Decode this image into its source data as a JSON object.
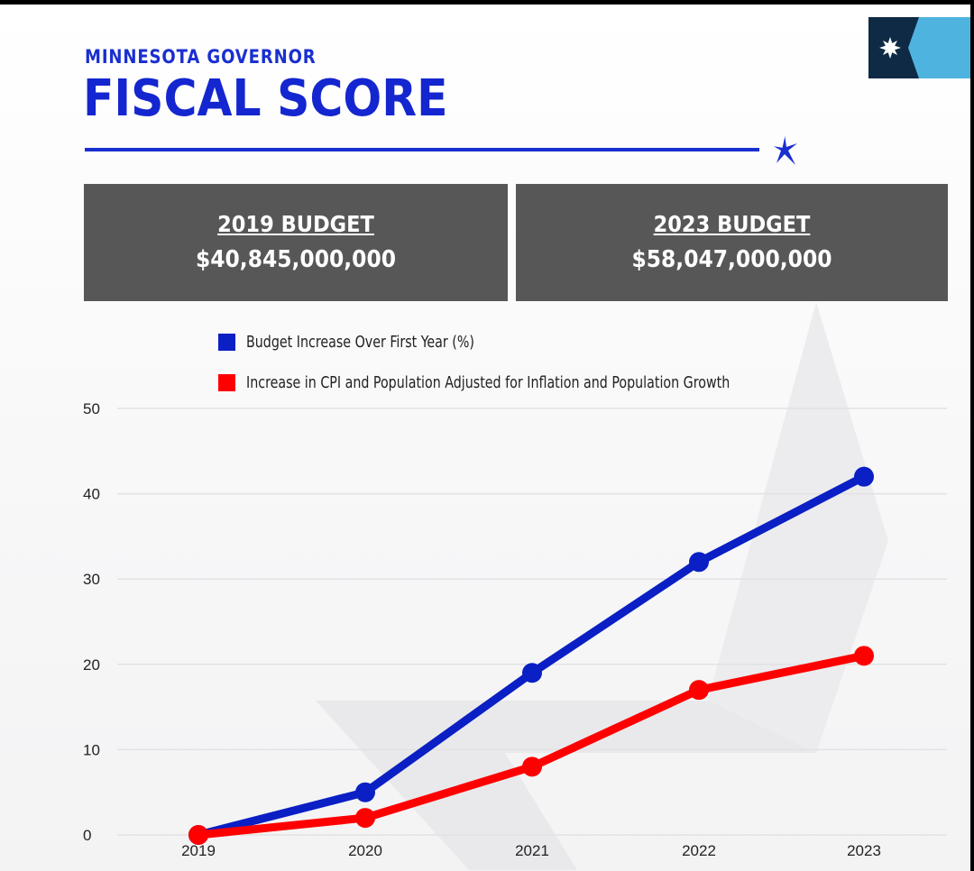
{
  "header": {
    "subtitle": "MINNESOTA GOVERNOR",
    "title": "FISCAL SCORE"
  },
  "budgets": [
    {
      "label": "2019 BUDGET",
      "value": "$40,845,000,000"
    },
    {
      "label": "2023 BUDGET",
      "value": "$58,047,000,000"
    }
  ],
  "colors": {
    "accent": "#1a2fd0",
    "box": "#575757",
    "blue_series": "#0a1fc4",
    "red_series": "#ff0000"
  },
  "chart_data": {
    "type": "line",
    "x": [
      "2019",
      "2020",
      "2021",
      "2022",
      "2023"
    ],
    "ylim": [
      0,
      50
    ],
    "yticks": [
      0,
      10,
      20,
      30,
      40,
      50
    ],
    "grid": true,
    "legend_position": "top-left",
    "series": [
      {
        "name": "Budget Increase Over First Year (%)",
        "color": "#0a1fc4",
        "values": [
          0,
          5,
          19,
          32,
          42
        ]
      },
      {
        "name": "Increase in CPI and Population Adjusted for Inflation and Population Growth",
        "color": "#ff0000",
        "values": [
          0,
          2,
          8,
          17,
          21
        ]
      }
    ]
  }
}
